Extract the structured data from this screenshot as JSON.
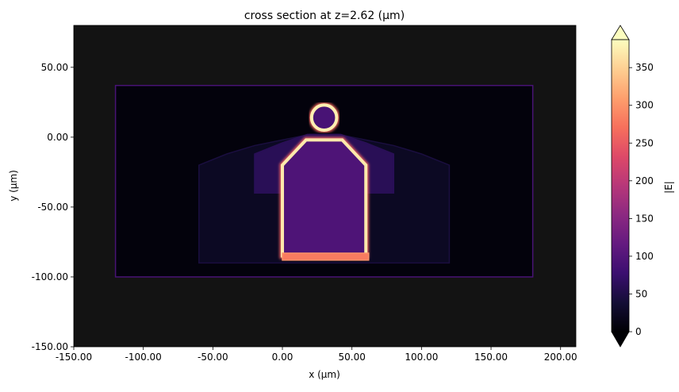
{
  "chart_data": {
    "type": "heatmap",
    "title": "cross section at z=2.62 (µm)",
    "xlabel": "x (µm)",
    "ylabel": "y (µm)",
    "xlim": [
      -150,
      211
    ],
    "ylim": [
      -150,
      80
    ],
    "xticks": [
      -150,
      -100,
      -50,
      0,
      50,
      100,
      150,
      200
    ],
    "xtick_labels": [
      "-150.00",
      "-100.00",
      "-50.00",
      "0.00",
      "50.00",
      "100.00",
      "150.00",
      "200.00"
    ],
    "yticks": [
      50,
      0,
      -50,
      -100,
      -150
    ],
    "ytick_labels": [
      "50.00",
      "0.00",
      "-50.00",
      "-100.00",
      "-150.00"
    ],
    "grid": false,
    "background_color": "#131313",
    "colorbar": {
      "label": "|E|",
      "colormap": "magma",
      "min": 0,
      "max": 387,
      "extend": "both",
      "ticks": [
        0,
        50,
        100,
        150,
        200,
        250,
        300,
        350
      ],
      "tick_labels": [
        "0",
        "50",
        "100",
        "150",
        "200",
        "250",
        "300",
        "350"
      ]
    },
    "regions": [
      {
        "shape": "rect",
        "x": [
          -120,
          180
        ],
        "y": [
          -100,
          37
        ],
        "value": 6,
        "edge_value": 90
      },
      {
        "shape": "polygon",
        "points": [
          [
            -60,
            -90
          ],
          [
            120,
            -90
          ],
          [
            120,
            -20
          ],
          [
            100,
            -12
          ],
          [
            80,
            -6
          ],
          [
            60,
            -2
          ],
          [
            40,
            2
          ],
          [
            20,
            2
          ],
          [
            0,
            -2
          ],
          [
            -20,
            -6
          ],
          [
            -40,
            -12
          ],
          [
            -60,
            -20
          ]
        ],
        "value": 28,
        "edge_value": 45
      },
      {
        "shape": "polygon",
        "points": [
          [
            -20,
            -40
          ],
          [
            80,
            -40
          ],
          [
            80,
            -12
          ],
          [
            60,
            -4
          ],
          [
            42,
            2
          ],
          [
            18,
            2
          ],
          [
            0,
            -4
          ],
          [
            -20,
            -12
          ]
        ],
        "value": 60,
        "edge_value": 60
      },
      {
        "shape": "polygon",
        "points": [
          [
            0,
            -85
          ],
          [
            60,
            -85
          ],
          [
            60,
            -20
          ],
          [
            43,
            -2
          ],
          [
            17,
            -2
          ],
          [
            0,
            -20
          ]
        ],
        "value": 95,
        "edge_value": 370
      },
      {
        "shape": "circle",
        "cx": 30,
        "cy": 14,
        "r": 9,
        "value": 90,
        "edge_value": 375
      },
      {
        "shape": "rect",
        "x": [
          0,
          62
        ],
        "y": [
          -88,
          -83
        ],
        "value": 280,
        "edge_value": 300
      }
    ]
  }
}
